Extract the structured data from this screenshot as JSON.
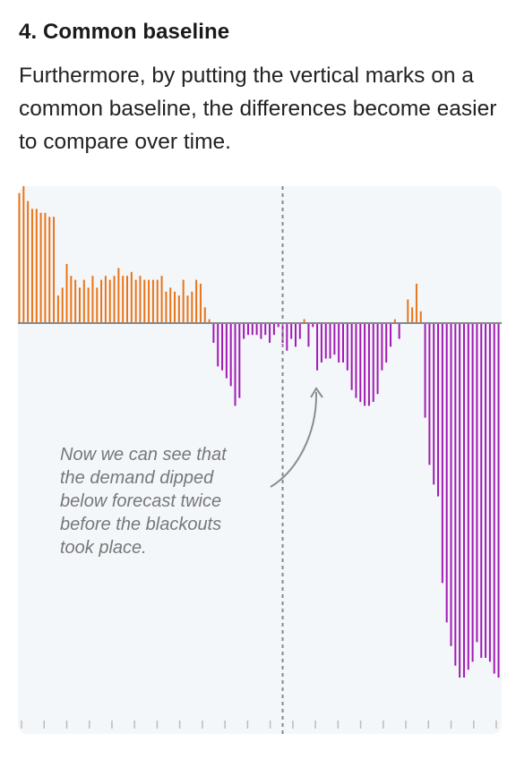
{
  "section": {
    "title": "4. Common baseline",
    "text": "Furthermore, by putting the vertical marks on a common baseline, the differences become easier to compare over time."
  },
  "colors": {
    "above": "#ea7416",
    "below": "#a11ab3",
    "panel": "#f4f7fa",
    "baseline": "#888888",
    "marker": "#888888",
    "note": "#777777"
  },
  "chart_data": {
    "type": "bar",
    "title": "",
    "xlabel": "",
    "ylabel": "",
    "baseline": 0,
    "ylim": [
      -100,
      35
    ],
    "x_ticks": 22,
    "marker_index": 61,
    "annotation": {
      "lines": [
        "Now we can see that",
        "the demand dipped",
        "below forecast twice",
        "before the blackouts",
        "took place."
      ]
    },
    "values": [
      33,
      35,
      31,
      29,
      29,
      28,
      28,
      27,
      27,
      7,
      9,
      15,
      12,
      11,
      9,
      11,
      9,
      12,
      9,
      11,
      12,
      11,
      12,
      14,
      12,
      12,
      13,
      11,
      12,
      11,
      11,
      11,
      11,
      12,
      8,
      9,
      8,
      7,
      11,
      7,
      8,
      11,
      10,
      4,
      1,
      -5,
      -11,
      -12,
      -14,
      -16,
      -21,
      -19,
      -4,
      -3,
      -3,
      -3,
      -4,
      -3,
      -5,
      -3,
      -1,
      -5,
      -7,
      -4,
      -6,
      -4,
      1,
      -6,
      -1,
      -12,
      -10,
      -9,
      -9,
      -8,
      -10,
      -10,
      -12,
      -17,
      -19,
      -20,
      -21,
      -21,
      -20,
      -18,
      -12,
      -10,
      -6,
      1,
      -4,
      0,
      6,
      4,
      10,
      3,
      -24,
      -36,
      -41,
      -44,
      -66,
      -76,
      -82,
      -87,
      -90,
      -90,
      -88,
      -86,
      -81,
      -85,
      -85,
      -86,
      -89,
      -90,
      -61
    ]
  }
}
